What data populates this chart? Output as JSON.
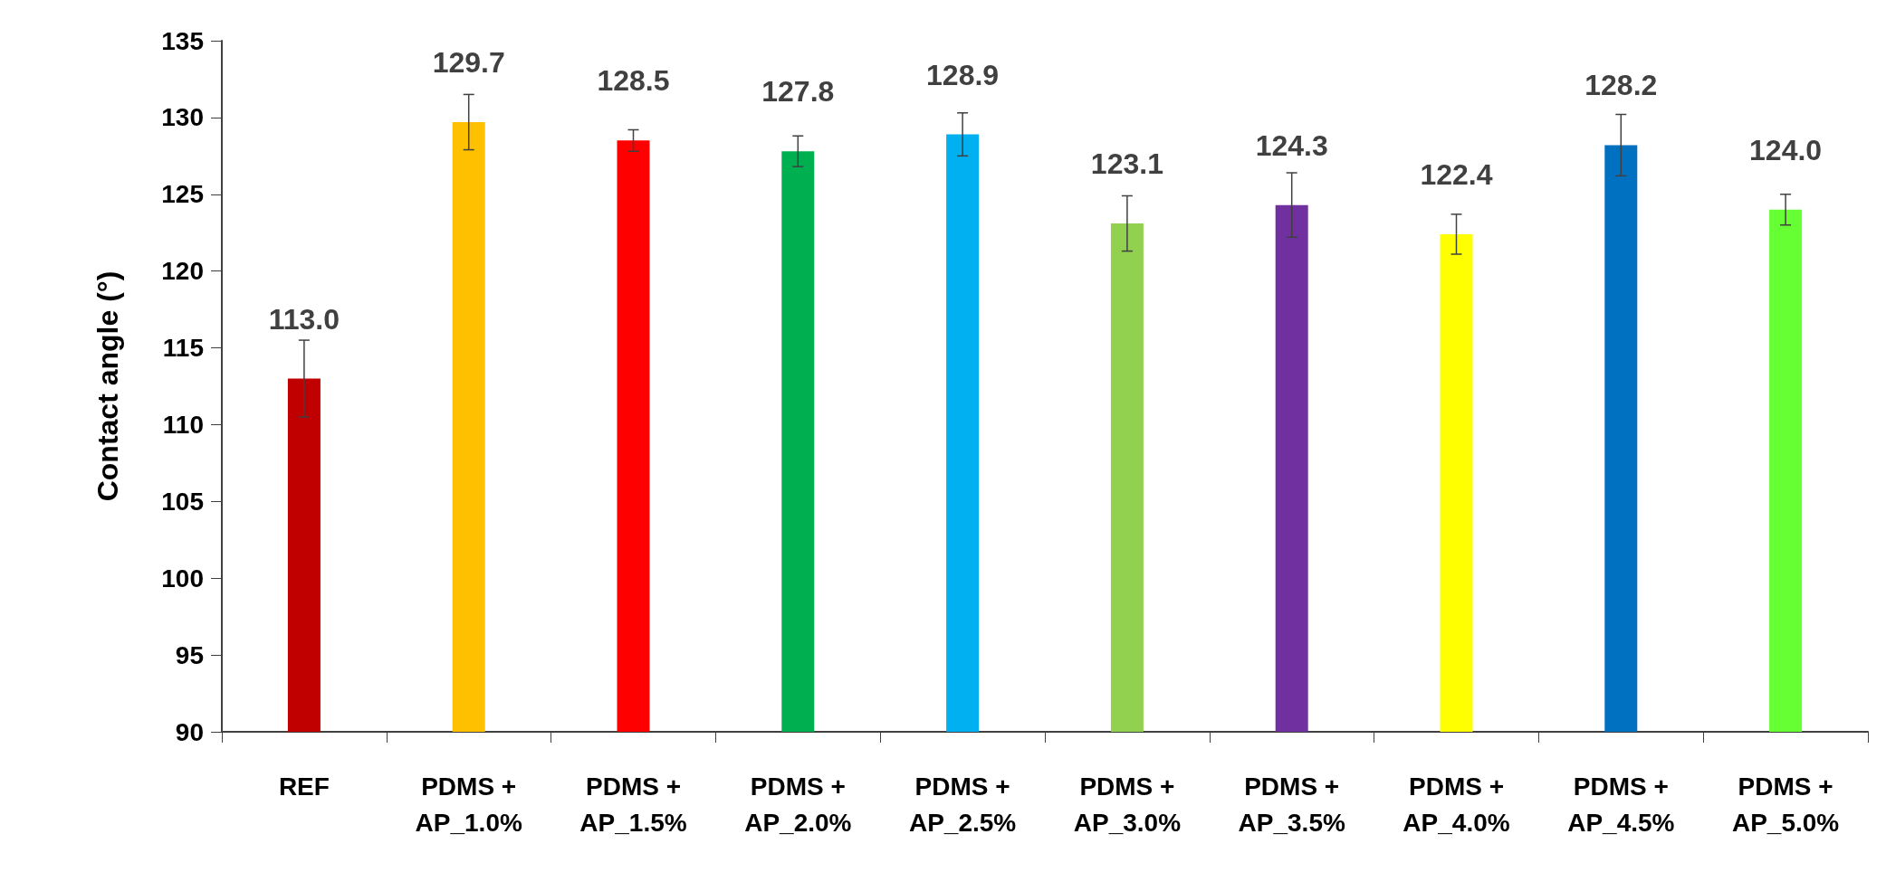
{
  "chart_data": {
    "type": "bar",
    "ylabel": "Contact angle (°)",
    "categories": [
      "REF",
      "PDMS +\nAP_1.0%",
      "PDMS +\nAP_1.5%",
      "PDMS +\nAP_2.0%",
      "PDMS +\nAP_2.5%",
      "PDMS +\nAP_3.0%",
      "PDMS +\nAP_3.5%",
      "PDMS +\nAP_4.0%",
      "PDMS +\nAP_4.5%",
      "PDMS +\nAP_5.0%"
    ],
    "values": [
      113.0,
      129.7,
      128.5,
      127.8,
      128.9,
      123.1,
      124.3,
      122.4,
      128.2,
      124.0
    ],
    "colors": [
      "#c00000",
      "#ffc000",
      "#ff0000",
      "#00b050",
      "#00b0f0",
      "#92d050",
      "#7030a0",
      "#ffff00",
      "#0070c0",
      "#66ff33"
    ],
    "errors": [
      2.5,
      1.8,
      0.7,
      1.0,
      1.4,
      1.8,
      2.1,
      1.3,
      2.0,
      1.0
    ],
    "value_labels": [
      "113.0",
      "129.7",
      "128.5",
      "127.8",
      "128.9",
      "123.1",
      "124.3",
      "122.4",
      "128.2",
      "124.0"
    ],
    "ylim": [
      90,
      135
    ],
    "yticks": [
      90,
      95,
      100,
      105,
      110,
      115,
      120,
      125,
      130,
      135
    ]
  }
}
